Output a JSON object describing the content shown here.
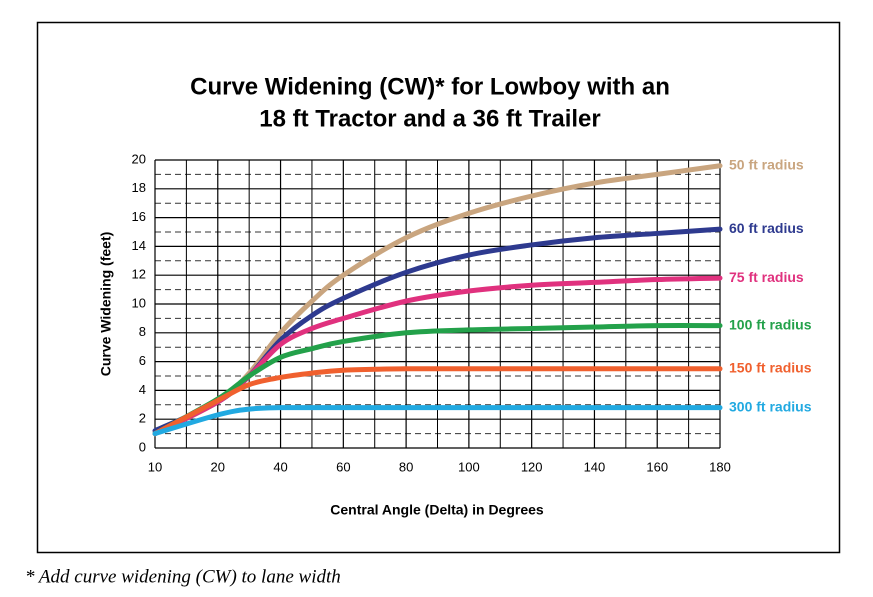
{
  "chart_data": {
    "type": "line",
    "title": [
      "Curve Widening (CW)* for Lowboy with an",
      "18 ft Tractor and a 36 ft Trailer"
    ],
    "x_label": "Central Angle (Delta) in Degrees",
    "y_label": "Curve Widening (feet)",
    "footnote": "* Add curve widening (CW) to lane width",
    "x": [
      10,
      20,
      30,
      40,
      50,
      60,
      80,
      100,
      120,
      140,
      160,
      180
    ],
    "series": [
      {
        "name": "50 ft radius",
        "color": "#c9a57f",
        "values": [
          1,
          3.2,
          5.2,
          8,
          10.2,
          12,
          14.6,
          16.3,
          17.5,
          18.4,
          19,
          19.6
        ]
      },
      {
        "name": "60 ft radius",
        "color": "#2e3a8f",
        "values": [
          1.2,
          3.2,
          5.0,
          7.5,
          9.2,
          10.4,
          12.2,
          13.4,
          14.1,
          14.6,
          14.9,
          15.2
        ]
      },
      {
        "name": "75 ft radius",
        "color": "#e0317e",
        "values": [
          1,
          3.2,
          5,
          7.2,
          8.3,
          9.0,
          10.2,
          10.9,
          11.3,
          11.5,
          11.7,
          11.8
        ]
      },
      {
        "name": "100 ft radius",
        "color": "#23a14a",
        "values": [
          1,
          3.4,
          5,
          6.3,
          6.9,
          7.4,
          8.0,
          8.2,
          8.3,
          8.4,
          8.5,
          8.5
        ]
      },
      {
        "name": "150 ft radius",
        "color": "#f0602e",
        "values": [
          1,
          3.3,
          4.4,
          4.9,
          5.2,
          5.4,
          5.5,
          5.5,
          5.5,
          5.5,
          5.5,
          5.5
        ]
      },
      {
        "name": "300 ft radius",
        "color": "#21a9e1",
        "values": [
          1,
          2.3,
          2.7,
          2.8,
          2.8,
          2.8,
          2.8,
          2.8,
          2.8,
          2.8,
          2.8,
          2.8
        ]
      }
    ],
    "xlim": [
      10,
      180
    ],
    "xticks": [
      10,
      20,
      40,
      60,
      80,
      100,
      120,
      140,
      160,
      180
    ],
    "minor_xticks": [
      15,
      30,
      50,
      70,
      90,
      110,
      130,
      150,
      170
    ],
    "ylim": [
      0,
      20
    ],
    "yticks": [
      0,
      2,
      4,
      6,
      8,
      10,
      12,
      14,
      16,
      18,
      20
    ],
    "minor_yticks": [
      1,
      3,
      5,
      7,
      9,
      11,
      13,
      15,
      17,
      19
    ],
    "grid": true
  }
}
